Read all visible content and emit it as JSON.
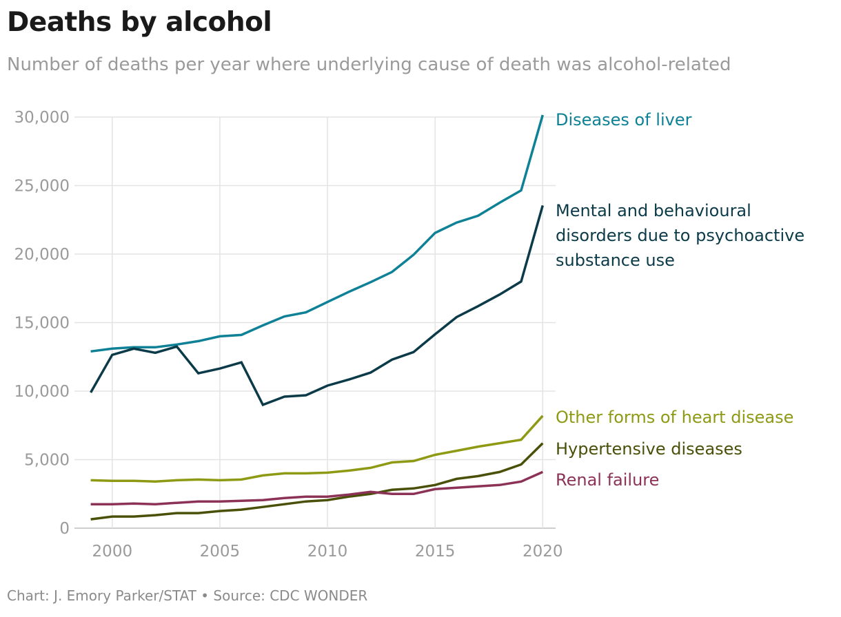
{
  "chart_data": {
    "type": "line",
    "title": "Deaths by alcohol",
    "subtitle": "Number of deaths per year where underlying cause of death was alcohol-related",
    "source": "Chart: J. Emory Parker/STAT • Source: CDC WONDER",
    "x": [
      1999,
      2000,
      2001,
      2002,
      2003,
      2004,
      2005,
      2006,
      2007,
      2008,
      2009,
      2010,
      2011,
      2012,
      2013,
      2014,
      2015,
      2016,
      2017,
      2018,
      2019,
      2020
    ],
    "xlim": [
      1998.5,
      2020.6
    ],
    "ylim": [
      0,
      30000
    ],
    "xticks": [
      2000,
      2005,
      2010,
      2015,
      2020
    ],
    "yticks": [
      0,
      5000,
      10000,
      15000,
      20000,
      25000,
      30000
    ],
    "xtick_labels": [
      "2000",
      "2005",
      "2010",
      "2015",
      "2020"
    ],
    "ytick_labels": [
      "0",
      "5,000",
      "10,000",
      "15,000",
      "20,000",
      "25,000",
      "30,000"
    ],
    "grid": "vertical and horizontal",
    "legend": "direct labels at right end of lines",
    "series": [
      {
        "name": "Diseases of liver",
        "label_lines": [
          "Diseases of liver"
        ],
        "color": "#0e8196",
        "values": [
          12900,
          13100,
          13200,
          13200,
          13400,
          13650,
          14000,
          14100,
          14800,
          15450,
          15750,
          16500,
          17250,
          17950,
          18700,
          19950,
          21550,
          22300,
          22800,
          23750,
          24650,
          30150
        ]
      },
      {
        "name": "Mental and behavioural disorders due to psychoactive substance use",
        "label_lines": [
          "Mental and behavioural",
          "disorders due to psychoactive",
          "substance use"
        ],
        "color": "#0b3a48",
        "values": [
          9900,
          12650,
          13100,
          12800,
          13250,
          11300,
          11650,
          12100,
          9000,
          9600,
          9700,
          10400,
          10850,
          11350,
          12300,
          12850,
          14150,
          15400,
          16200,
          17050,
          18000,
          23550
        ]
      },
      {
        "name": "Other forms of heart disease",
        "label_lines": [
          "Other forms of heart disease"
        ],
        "color": "#8e9a14",
        "values": [
          3500,
          3450,
          3450,
          3400,
          3500,
          3550,
          3500,
          3550,
          3850,
          4000,
          4000,
          4050,
          4200,
          4400,
          4800,
          4900,
          5350,
          5650,
          5950,
          6200,
          6450,
          8200
        ]
      },
      {
        "name": "Hypertensive diseases",
        "label_lines": [
          "Hypertensive diseases"
        ],
        "color": "#4a5008",
        "values": [
          650,
          850,
          850,
          950,
          1100,
          1100,
          1250,
          1350,
          1550,
          1750,
          1950,
          2050,
          2300,
          2500,
          2800,
          2900,
          3150,
          3600,
          3800,
          4100,
          4650,
          6200
        ]
      },
      {
        "name": "Renal failure",
        "label_lines": [
          "Renal failure"
        ],
        "color": "#8c3257",
        "values": [
          1750,
          1750,
          1800,
          1750,
          1850,
          1950,
          1950,
          2000,
          2050,
          2200,
          2300,
          2300,
          2450,
          2650,
          2500,
          2500,
          2850,
          2950,
          3050,
          3150,
          3400,
          4100
        ]
      }
    ]
  }
}
